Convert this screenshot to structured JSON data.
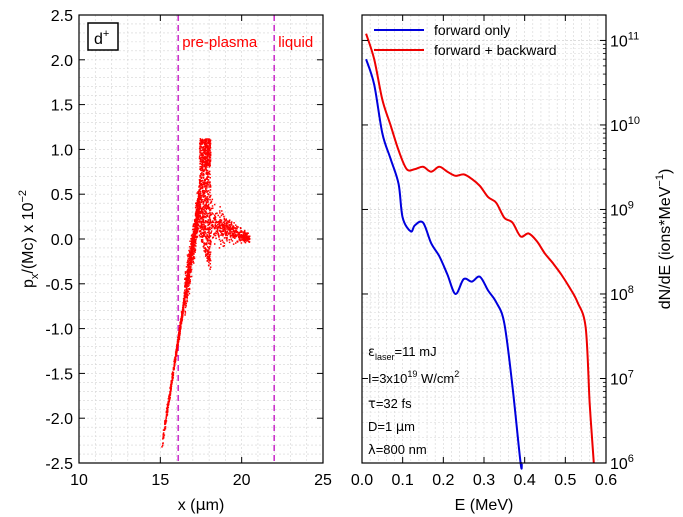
{
  "chart_data": [
    {
      "type": "scatter",
      "panel_label": "d",
      "panel_label_sup": "+",
      "xlabel_pre": "x (",
      "xlabel_mu": "μ",
      "xlabel_post": "m)",
      "ylabel_p": "p",
      "ylabel_sub": "x",
      "ylabel_mid": "/(Mc) x 10",
      "ylabel_sup": "−2",
      "xlim": [
        10,
        25
      ],
      "ylim": [
        -2.5,
        2.5
      ],
      "xticks": [
        "10",
        "15",
        "20",
        "25"
      ],
      "yticks": [
        "-2.5",
        "-2.0",
        "-1.5",
        "-1.0",
        "-0.5",
        "0.0",
        "0.5",
        "1.0",
        "1.5",
        "2.0",
        "2.5"
      ],
      "grid": true,
      "color": "#ff0000",
      "vlines": [
        {
          "x": 16.1,
          "label": "pre-plasma",
          "color": "#cc33cc"
        },
        {
          "x": 22.0,
          "label": "liquid",
          "color": "#cc33cc"
        }
      ],
      "cloud": {
        "approx_points": [
          [
            15.1,
            -2.3
          ],
          [
            15.3,
            -1.9
          ],
          [
            15.5,
            -1.5
          ],
          [
            15.7,
            -1.1
          ],
          [
            16.0,
            -0.7
          ],
          [
            16.3,
            -0.35
          ],
          [
            16.7,
            -0.1
          ],
          [
            17.2,
            0.2
          ],
          [
            17.6,
            0.55
          ],
          [
            17.9,
            0.85
          ],
          [
            18.0,
            1.1
          ],
          [
            18.3,
            0.4
          ],
          [
            19.0,
            0.05
          ],
          [
            20.0,
            0.0
          ],
          [
            20.5,
            -0.02
          ]
        ]
      }
    },
    {
      "type": "line",
      "xlabel": "E (MeV)",
      "ylabel_pre": "dN/dE (ions*MeV",
      "ylabel_sup": "−1",
      "ylabel_post": ")",
      "xlim": [
        0,
        0.6
      ],
      "ylim": [
        1000000,
        200000000000
      ],
      "yscale": "log",
      "xticks": [
        "0.0",
        "0.1",
        "0.2",
        "0.3",
        "0.4",
        "0.5",
        "0.6"
      ],
      "yticks": [
        {
          "base": "10",
          "exp": "6"
        },
        {
          "base": "10",
          "exp": "7"
        },
        {
          "base": "10",
          "exp": "8"
        },
        {
          "base": "10",
          "exp": "9"
        },
        {
          "base": "10",
          "exp": "10"
        },
        {
          "base": "10",
          "exp": "11"
        }
      ],
      "grid": true,
      "legend_position": "top",
      "series": [
        {
          "name": "forward only",
          "color": "#0000dd",
          "x": [
            0.01,
            0.03,
            0.05,
            0.07,
            0.09,
            0.1,
            0.12,
            0.13,
            0.15,
            0.17,
            0.19,
            0.21,
            0.23,
            0.25,
            0.27,
            0.29,
            0.31,
            0.33,
            0.35,
            0.37,
            0.39,
            0.393
          ],
          "y": [
            60000000000,
            30000000000,
            8000000000,
            4000000000,
            2000000000,
            800000000,
            550000000,
            650000000,
            700000000,
            400000000,
            280000000,
            170000000,
            100000000,
            150000000,
            140000000,
            160000000,
            110000000,
            80000000,
            45000000,
            8000000,
            1000000,
            1000000
          ]
        },
        {
          "name": "forward + backward",
          "color": "#ee0000",
          "x": [
            0.01,
            0.03,
            0.05,
            0.07,
            0.09,
            0.11,
            0.13,
            0.15,
            0.17,
            0.19,
            0.21,
            0.23,
            0.25,
            0.27,
            0.29,
            0.31,
            0.33,
            0.35,
            0.37,
            0.39,
            0.41,
            0.43,
            0.45,
            0.47,
            0.49,
            0.51,
            0.53,
            0.55,
            0.56,
            0.57
          ],
          "y": [
            120000000000,
            60000000000,
            20000000000,
            10000000000,
            5000000000,
            3000000000,
            3000000000,
            3200000000,
            2800000000,
            3200000000,
            2800000000,
            2500000000,
            2600000000,
            2300000000,
            1900000000,
            1400000000,
            1200000000,
            800000000,
            700000000,
            480000000,
            520000000,
            420000000,
            300000000,
            230000000,
            170000000,
            120000000,
            80000000,
            40000000,
            5000000,
            1000000
          ]
        }
      ],
      "annotations": [
        {
          "base": "ε",
          "sub": "laser",
          "rest": "=11 mJ"
        },
        {
          "base": "I=3x10",
          "sup": "19",
          "rest": " W/cm",
          "sup2": "2"
        },
        {
          "base": "τ",
          "rest": "=32 fs"
        },
        {
          "base": "D=1 ",
          "mu": "μ",
          "rest": "m"
        },
        {
          "base": "λ",
          "rest": "=800 nm"
        }
      ]
    }
  ]
}
